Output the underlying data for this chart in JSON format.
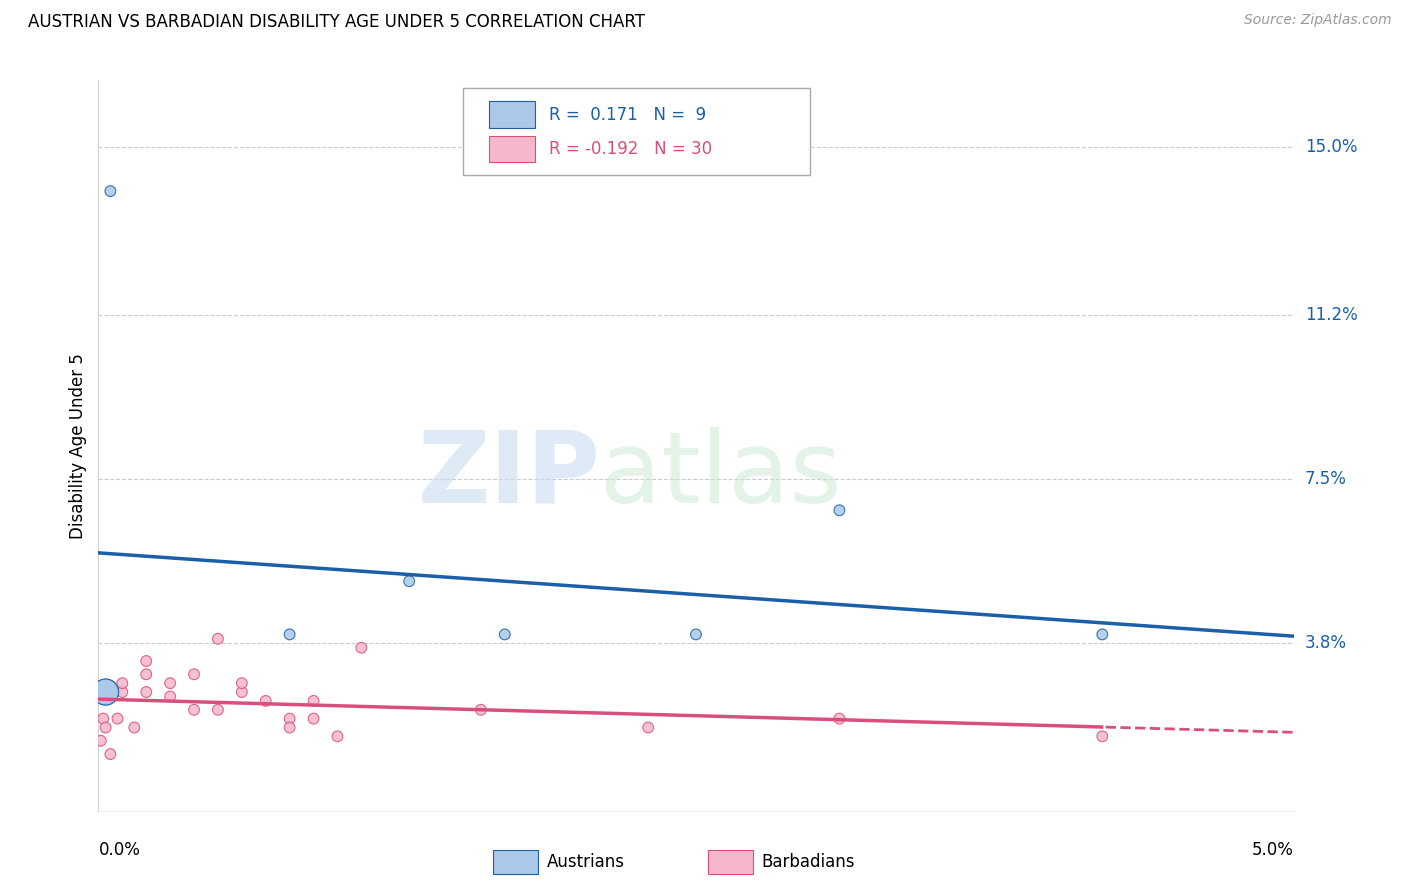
{
  "title": "AUSTRIAN VS BARBADIAN DISABILITY AGE UNDER 5 CORRELATION CHART",
  "source": "Source: ZipAtlas.com",
  "ylabel": "Disability Age Under 5",
  "ytick_labels": [
    "15.0%",
    "11.2%",
    "7.5%",
    "3.8%"
  ],
  "ytick_values": [
    0.15,
    0.112,
    0.075,
    0.038
  ],
  "xmin": 0.0,
  "xmax": 0.05,
  "ymin": 0.0,
  "ymax": 0.165,
  "legend_r_austrians": "0.171",
  "legend_n_austrians": "9",
  "legend_r_barbadians": "-0.192",
  "legend_n_barbadians": "30",
  "austrians_color": "#aac8e8",
  "barbadians_color": "#f5b8cb",
  "austrians_line_color": "#1a5fa8",
  "barbadians_line_color": "#d94f7a",
  "austrians_x": [
    0.0003,
    0.0003,
    0.0005,
    0.008,
    0.013,
    0.017,
    0.025,
    0.031,
    0.042
  ],
  "austrians_y": [
    0.027,
    0.027,
    0.14,
    0.04,
    0.052,
    0.04,
    0.04,
    0.068,
    0.04
  ],
  "austrians_size": [
    350,
    350,
    60,
    60,
    60,
    60,
    60,
    60,
    60
  ],
  "barbadians_x": [
    0.0001,
    0.0002,
    0.0003,
    0.0005,
    0.0008,
    0.001,
    0.001,
    0.0015,
    0.002,
    0.002,
    0.002,
    0.003,
    0.003,
    0.004,
    0.004,
    0.005,
    0.005,
    0.006,
    0.006,
    0.007,
    0.008,
    0.008,
    0.009,
    0.009,
    0.01,
    0.011,
    0.016,
    0.023,
    0.031,
    0.042
  ],
  "barbadians_y": [
    0.016,
    0.021,
    0.019,
    0.013,
    0.021,
    0.027,
    0.029,
    0.019,
    0.034,
    0.031,
    0.027,
    0.026,
    0.029,
    0.023,
    0.031,
    0.023,
    0.039,
    0.027,
    0.029,
    0.025,
    0.021,
    0.019,
    0.021,
    0.025,
    0.017,
    0.037,
    0.023,
    0.019,
    0.021,
    0.017
  ],
  "barbadians_size": [
    60,
    60,
    60,
    60,
    60,
    60,
    60,
    60,
    60,
    60,
    60,
    60,
    60,
    60,
    60,
    60,
    60,
    60,
    60,
    60,
    60,
    60,
    60,
    60,
    60,
    60,
    60,
    60,
    60,
    60
  ],
  "background_color": "#ffffff",
  "grid_color": "#cccccc"
}
